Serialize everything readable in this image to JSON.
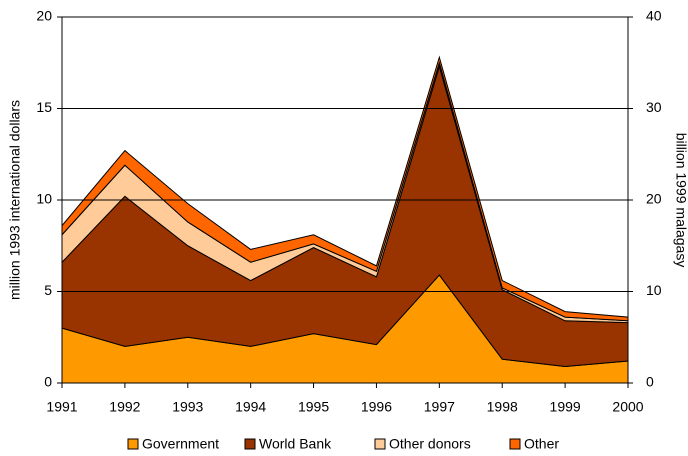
{
  "chart_data": {
    "type": "stacked_area",
    "y_label": "million 1993 international dollars",
    "y2_label": "billion 1999 malagasy",
    "categories": [
      "1991",
      "1992",
      "1993",
      "1994",
      "1995",
      "1996",
      "1997",
      "1998",
      "1999",
      "2000"
    ],
    "series": [
      {
        "name": "Government",
        "color": "#ff9900",
        "values": [
          3.0,
          2.0,
          2.5,
          2.0,
          2.7,
          2.1,
          5.9,
          1.3,
          0.9,
          1.2
        ]
      },
      {
        "name": "World Bank",
        "color": "#993300",
        "values": [
          3.6,
          8.2,
          5.0,
          3.6,
          4.7,
          3.7,
          11.4,
          3.8,
          2.5,
          2.1
        ]
      },
      {
        "name": "Other donors",
        "color": "#ffcc99",
        "values": [
          1.5,
          1.7,
          1.3,
          1.0,
          0.2,
          0.3,
          0.2,
          0.1,
          0.2,
          0.1
        ]
      },
      {
        "name": "Other",
        "color": "#ff6600",
        "values": [
          0.5,
          0.8,
          1.0,
          0.7,
          0.5,
          0.3,
          0.3,
          0.4,
          0.3,
          0.2
        ]
      }
    ],
    "ylim": [
      0,
      20
    ],
    "yticks": [
      0,
      5,
      10,
      15,
      20
    ],
    "y2lim": [
      0,
      40
    ],
    "y2ticks": [
      0,
      10,
      20,
      30,
      40
    ],
    "grid": true
  }
}
